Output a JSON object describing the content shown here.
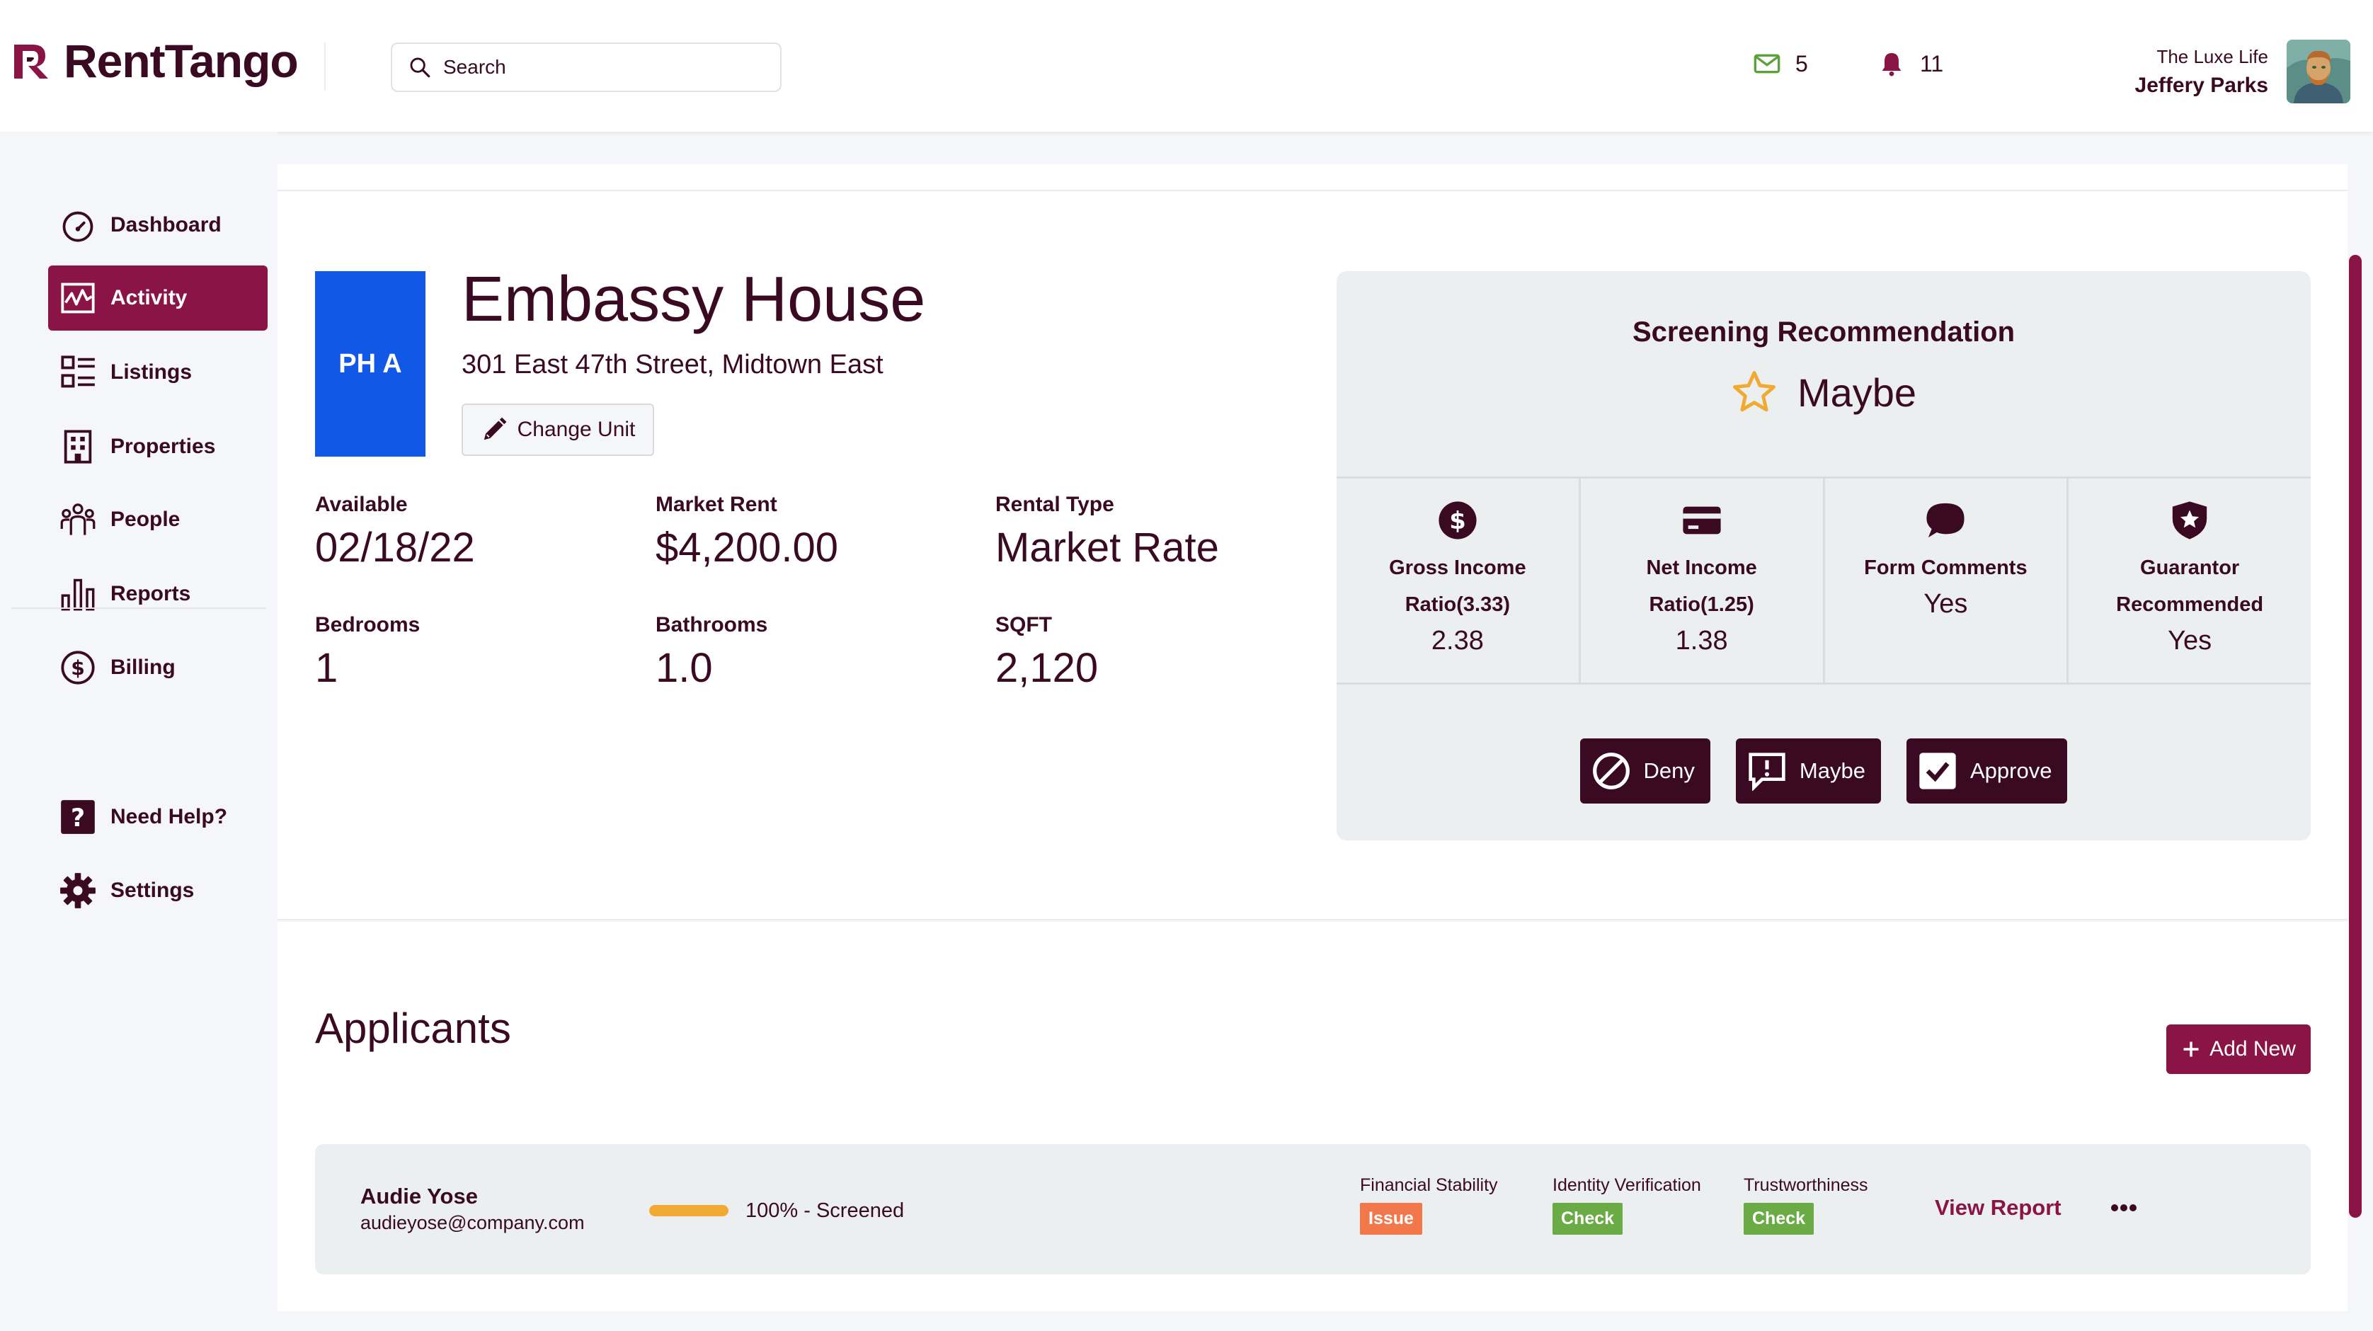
{
  "app": {
    "name": "RentTango"
  },
  "header": {
    "search_placeholder": "Search",
    "messages_count": "5",
    "notifications_count": "11",
    "org_name": "The Luxe Life",
    "user_name": "Jeffery Parks"
  },
  "sidebar": {
    "items": [
      {
        "label": "Dashboard",
        "icon": "gauge-icon"
      },
      {
        "label": "Activity",
        "icon": "activity-icon",
        "active": true
      },
      {
        "label": "Listings",
        "icon": "listings-icon"
      },
      {
        "label": "Properties",
        "icon": "building-icon"
      },
      {
        "label": "People",
        "icon": "people-icon"
      },
      {
        "label": "Reports",
        "icon": "bar-chart-icon"
      },
      {
        "label": "Billing",
        "icon": "dollar-icon"
      }
    ],
    "help_label": "Need Help?",
    "settings_label": "Settings"
  },
  "unit": {
    "badge": "PH A",
    "title": "Embassy House",
    "address": "301 East 47th Street, Midtown East",
    "change_unit_label": "Change Unit",
    "facts": {
      "available_label": "Available",
      "available_value": "02/18/22",
      "market_rent_label": "Market Rent",
      "market_rent_value": "$4,200.00",
      "rental_type_label": "Rental Type",
      "rental_type_value": "Market Rate",
      "bedrooms_label": "Bedrooms",
      "bedrooms_value": "1",
      "bathrooms_label": "Bathrooms",
      "bathrooms_value": "1.0",
      "sqft_label": "SQFT",
      "sqft_value": "2,120"
    }
  },
  "screening": {
    "title": "Screening Recommendation",
    "result": "Maybe",
    "metrics": [
      {
        "label": "Gross Income Ratio(3.33)",
        "value": "2.38",
        "icon": "dollar-circle-icon"
      },
      {
        "label": "Net Income Ratio(1.25)",
        "value": "1.38",
        "icon": "credit-card-icon"
      },
      {
        "label": "Form Comments",
        "value": "Yes",
        "icon": "comment-icon"
      },
      {
        "label": "Guarantor Recommended",
        "value": "Yes",
        "icon": "shield-star-icon"
      }
    ],
    "actions": {
      "deny": "Deny",
      "maybe": "Maybe",
      "approve": "Approve"
    }
  },
  "applicants": {
    "title": "Applicants",
    "add_new_label": "Add New",
    "rows": [
      {
        "name": "Audie Yose",
        "email": "audieyose@company.com",
        "progress_percent": 100,
        "progress_text": "100% - Screened",
        "metrics": [
          {
            "label": "Financial Stability",
            "status": "Issue",
            "color": "#f2784b"
          },
          {
            "label": "Identity Verification",
            "status": "Check",
            "color": "#6aab45"
          },
          {
            "label": "Trustworthiness",
            "status": "Check",
            "color": "#6aab45"
          }
        ],
        "view_report_label": "View Report"
      }
    ]
  },
  "colors": {
    "brand": "#8b1447",
    "text": "#3a0a22",
    "unit_badge": "#1158e6",
    "star": "#f2a932"
  }
}
